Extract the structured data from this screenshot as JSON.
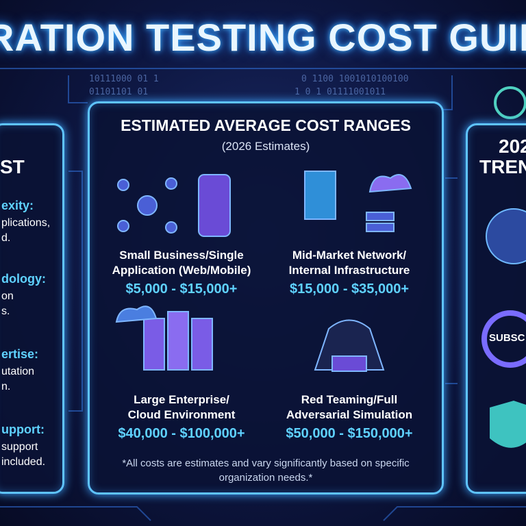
{
  "header": {
    "title": "RATION TESTING COST GUIDE"
  },
  "decor": {
    "binary": [
      "10111000 01  1",
      "01101101 01",
      "0 1100 1001010100100",
      "1 0 1  01111001011"
    ]
  },
  "left_panel": {
    "heading": "ST",
    "items": [
      {
        "heading": "exity:",
        "lines": [
          "plications,",
          "d."
        ]
      },
      {
        "heading": "dology:",
        "lines": [
          "on",
          "s."
        ]
      },
      {
        "heading": "ertise:",
        "lines": [
          "utation",
          "n."
        ]
      },
      {
        "heading": "upport:",
        "lines": [
          "support",
          "included."
        ]
      }
    ]
  },
  "center_panel": {
    "title": "ESTIMATED AVERAGE COST RANGES",
    "subtitle": "(2026 Estimates)",
    "items": [
      {
        "label": [
          "Small Business/Single",
          "Application (Web/Mobile)"
        ],
        "price": "$5,000 - $15,000+"
      },
      {
        "label": [
          "Mid-Market Network/",
          "Internal Infrastructure"
        ],
        "price": "$15,000 - $35,000+"
      },
      {
        "label": [
          "Large Enterprise/",
          "Cloud Environment"
        ],
        "price": "$40,000 - $100,000+"
      },
      {
        "label": [
          "Red Teaming/Full",
          "Adversarial Simulation"
        ],
        "price": "$50,000 - $150,000+"
      }
    ],
    "footnote": "*All costs are estimates and vary significantly based on specific organization needs.*"
  },
  "right_panel": {
    "heading": [
      "202",
      "TREN"
    ],
    "icon_label": "SUBSC"
  }
}
